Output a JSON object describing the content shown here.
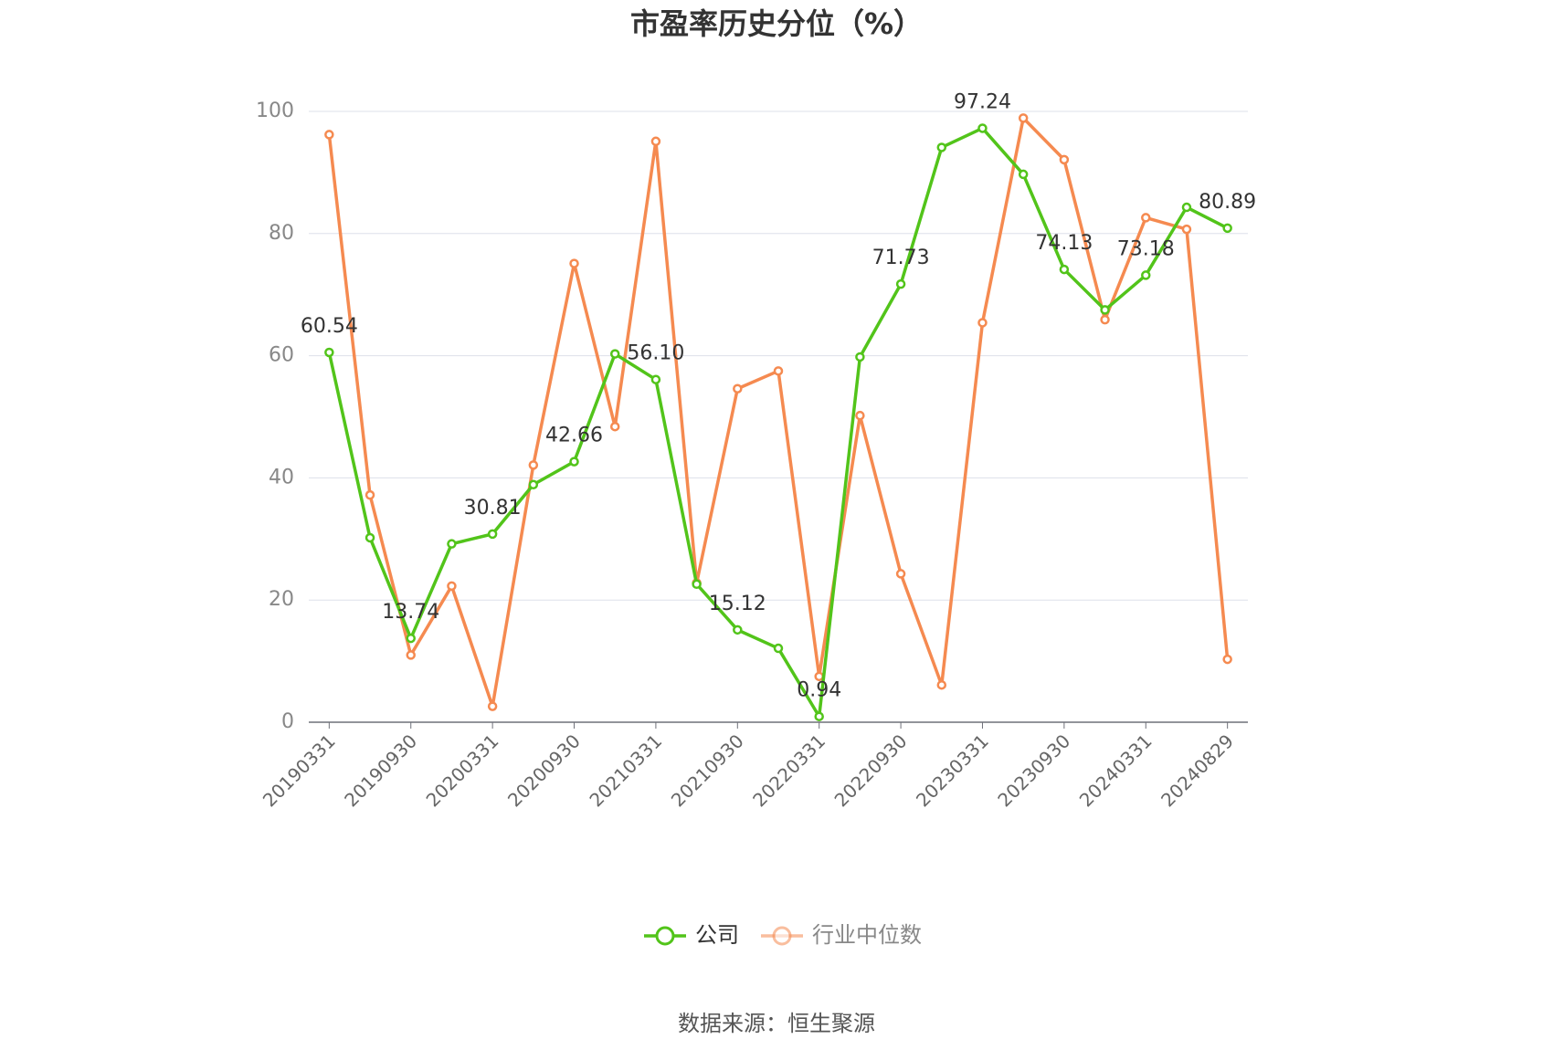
{
  "chart_data": {
    "type": "line",
    "title": "市盈率历史分位（%）",
    "categories": [
      "20190331",
      null,
      "20190930",
      null,
      "20200331",
      null,
      "20200930",
      null,
      "20210331",
      null,
      "20210930",
      null,
      "20220331",
      null,
      "20220930",
      null,
      "20230331",
      null,
      "20230930",
      null,
      "20240331",
      null,
      "20240829"
    ],
    "series": [
      {
        "name": "公司",
        "color": "#52c41a",
        "values": [
          60.54,
          30.2,
          13.74,
          29.2,
          30.81,
          38.9,
          42.66,
          60.3,
          56.1,
          22.6,
          15.12,
          12.1,
          0.94,
          59.8,
          71.73,
          94.1,
          97.24,
          89.7,
          74.13,
          67.5,
          73.18,
          84.3,
          80.89
        ],
        "value_labels": [
          "60.54",
          null,
          "13.74",
          null,
          "30.81",
          null,
          "42.66",
          null,
          "56.10",
          null,
          "15.12",
          null,
          "0.94",
          null,
          "71.73",
          null,
          "97.24",
          null,
          "74.13",
          null,
          "73.18",
          null,
          "80.89"
        ]
      },
      {
        "name": "行业中位数",
        "color": "#f58a50",
        "values": [
          96.2,
          37.2,
          11.0,
          22.3,
          2.6,
          42.1,
          75.1,
          48.4,
          95.1,
          22.8,
          54.6,
          57.5,
          7.5,
          50.2,
          24.3,
          6.1,
          65.4,
          98.9,
          92.1,
          65.9,
          82.6,
          80.7,
          10.3
        ]
      }
    ],
    "ylim": [
      0,
      100
    ],
    "yticks": [
      0,
      20,
      40,
      60,
      80,
      100
    ],
    "grid": true,
    "source": "数据来源：恒生聚源"
  }
}
